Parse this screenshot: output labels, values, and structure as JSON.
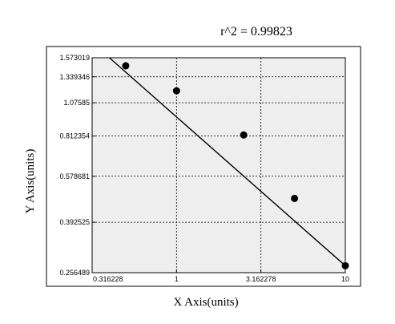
{
  "chart_data": {
    "type": "scatter",
    "title": "r^2 = 0.99823",
    "xlabel": "X Axis(units)",
    "ylabel": "Y Axis(units)",
    "x_scale": "log",
    "y_scale": "log",
    "xlim": [
      0.316228,
      10
    ],
    "ylim": [
      0.256489,
      1.573019
    ],
    "x_ticks": [
      "0.316228",
      "1",
      "3.162278",
      "10"
    ],
    "y_ticks": [
      "1.573019",
      "1.339346",
      "1.07585",
      "0.812354",
      "0.578681",
      "0.392525",
      "0.256489"
    ],
    "grid": true,
    "points": [
      {
        "x": 0.5,
        "y": 1.47
      },
      {
        "x": 1.0,
        "y": 1.19
      },
      {
        "x": 2.5,
        "y": 0.82
      },
      {
        "x": 5.0,
        "y": 0.48
      },
      {
        "x": 10.0,
        "y": 0.272
      }
    ],
    "fit_line": {
      "x": [
        0.4,
        10.0
      ],
      "y": [
        1.573019,
        0.272
      ]
    },
    "colors": {
      "plot_bg": "#eeeeee",
      "marker": "#000000",
      "line": "#000000",
      "grid": "#000000"
    }
  }
}
